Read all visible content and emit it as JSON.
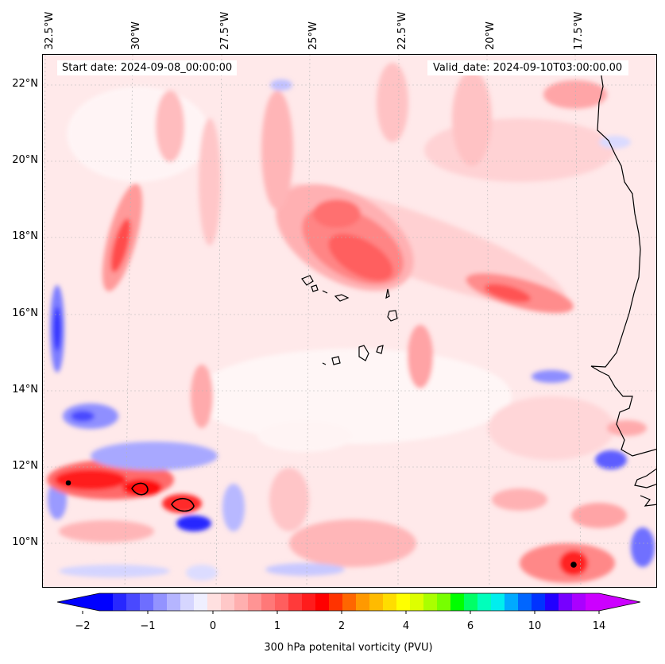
{
  "map": {
    "title_left": "Start date: 2024-09-08_00:00:00",
    "title_right": "Valid_date: 2024-09-10T03:00:00.00",
    "longitude_labels": [
      "32.5°W",
      "30°W",
      "27.5°W",
      "25°W",
      "22.5°W",
      "20°W",
      "17.5°W"
    ],
    "latitude_labels": [
      "22°N",
      "20°N",
      "18°N",
      "16°N",
      "14°N",
      "12°N",
      "10°N"
    ],
    "background_color": "#ffe9ea",
    "coastline_color": "#000000"
  },
  "colorbar": {
    "label": "300 hPa potenital vorticity (PVU)",
    "tick_labels": [
      "−2",
      "−1",
      "0",
      "1",
      "2",
      "4",
      "6",
      "10",
      "14"
    ],
    "colors": [
      "#0000ff",
      "#2727ff",
      "#4949ff",
      "#6e6eff",
      "#9393ff",
      "#b5b5ff",
      "#d6d6ff",
      "#efefff",
      "#ffe0e0",
      "#ffc8c8",
      "#ffafaf",
      "#ff9494",
      "#ff7878",
      "#ff5e5e",
      "#ff3a3a",
      "#ff1c1c",
      "#ff0000",
      "#ff3300",
      "#ff6600",
      "#ff9900",
      "#ffbb00",
      "#ffdd00",
      "#ffff00",
      "#ddff00",
      "#aaff00",
      "#77ff00",
      "#00ff00",
      "#00ff66",
      "#00ffbb",
      "#00eeee",
      "#00aaff",
      "#0066ff",
      "#0033ff",
      "#2200ff",
      "#7700ff",
      "#aa00ff",
      "#cc00ff"
    ]
  }
}
